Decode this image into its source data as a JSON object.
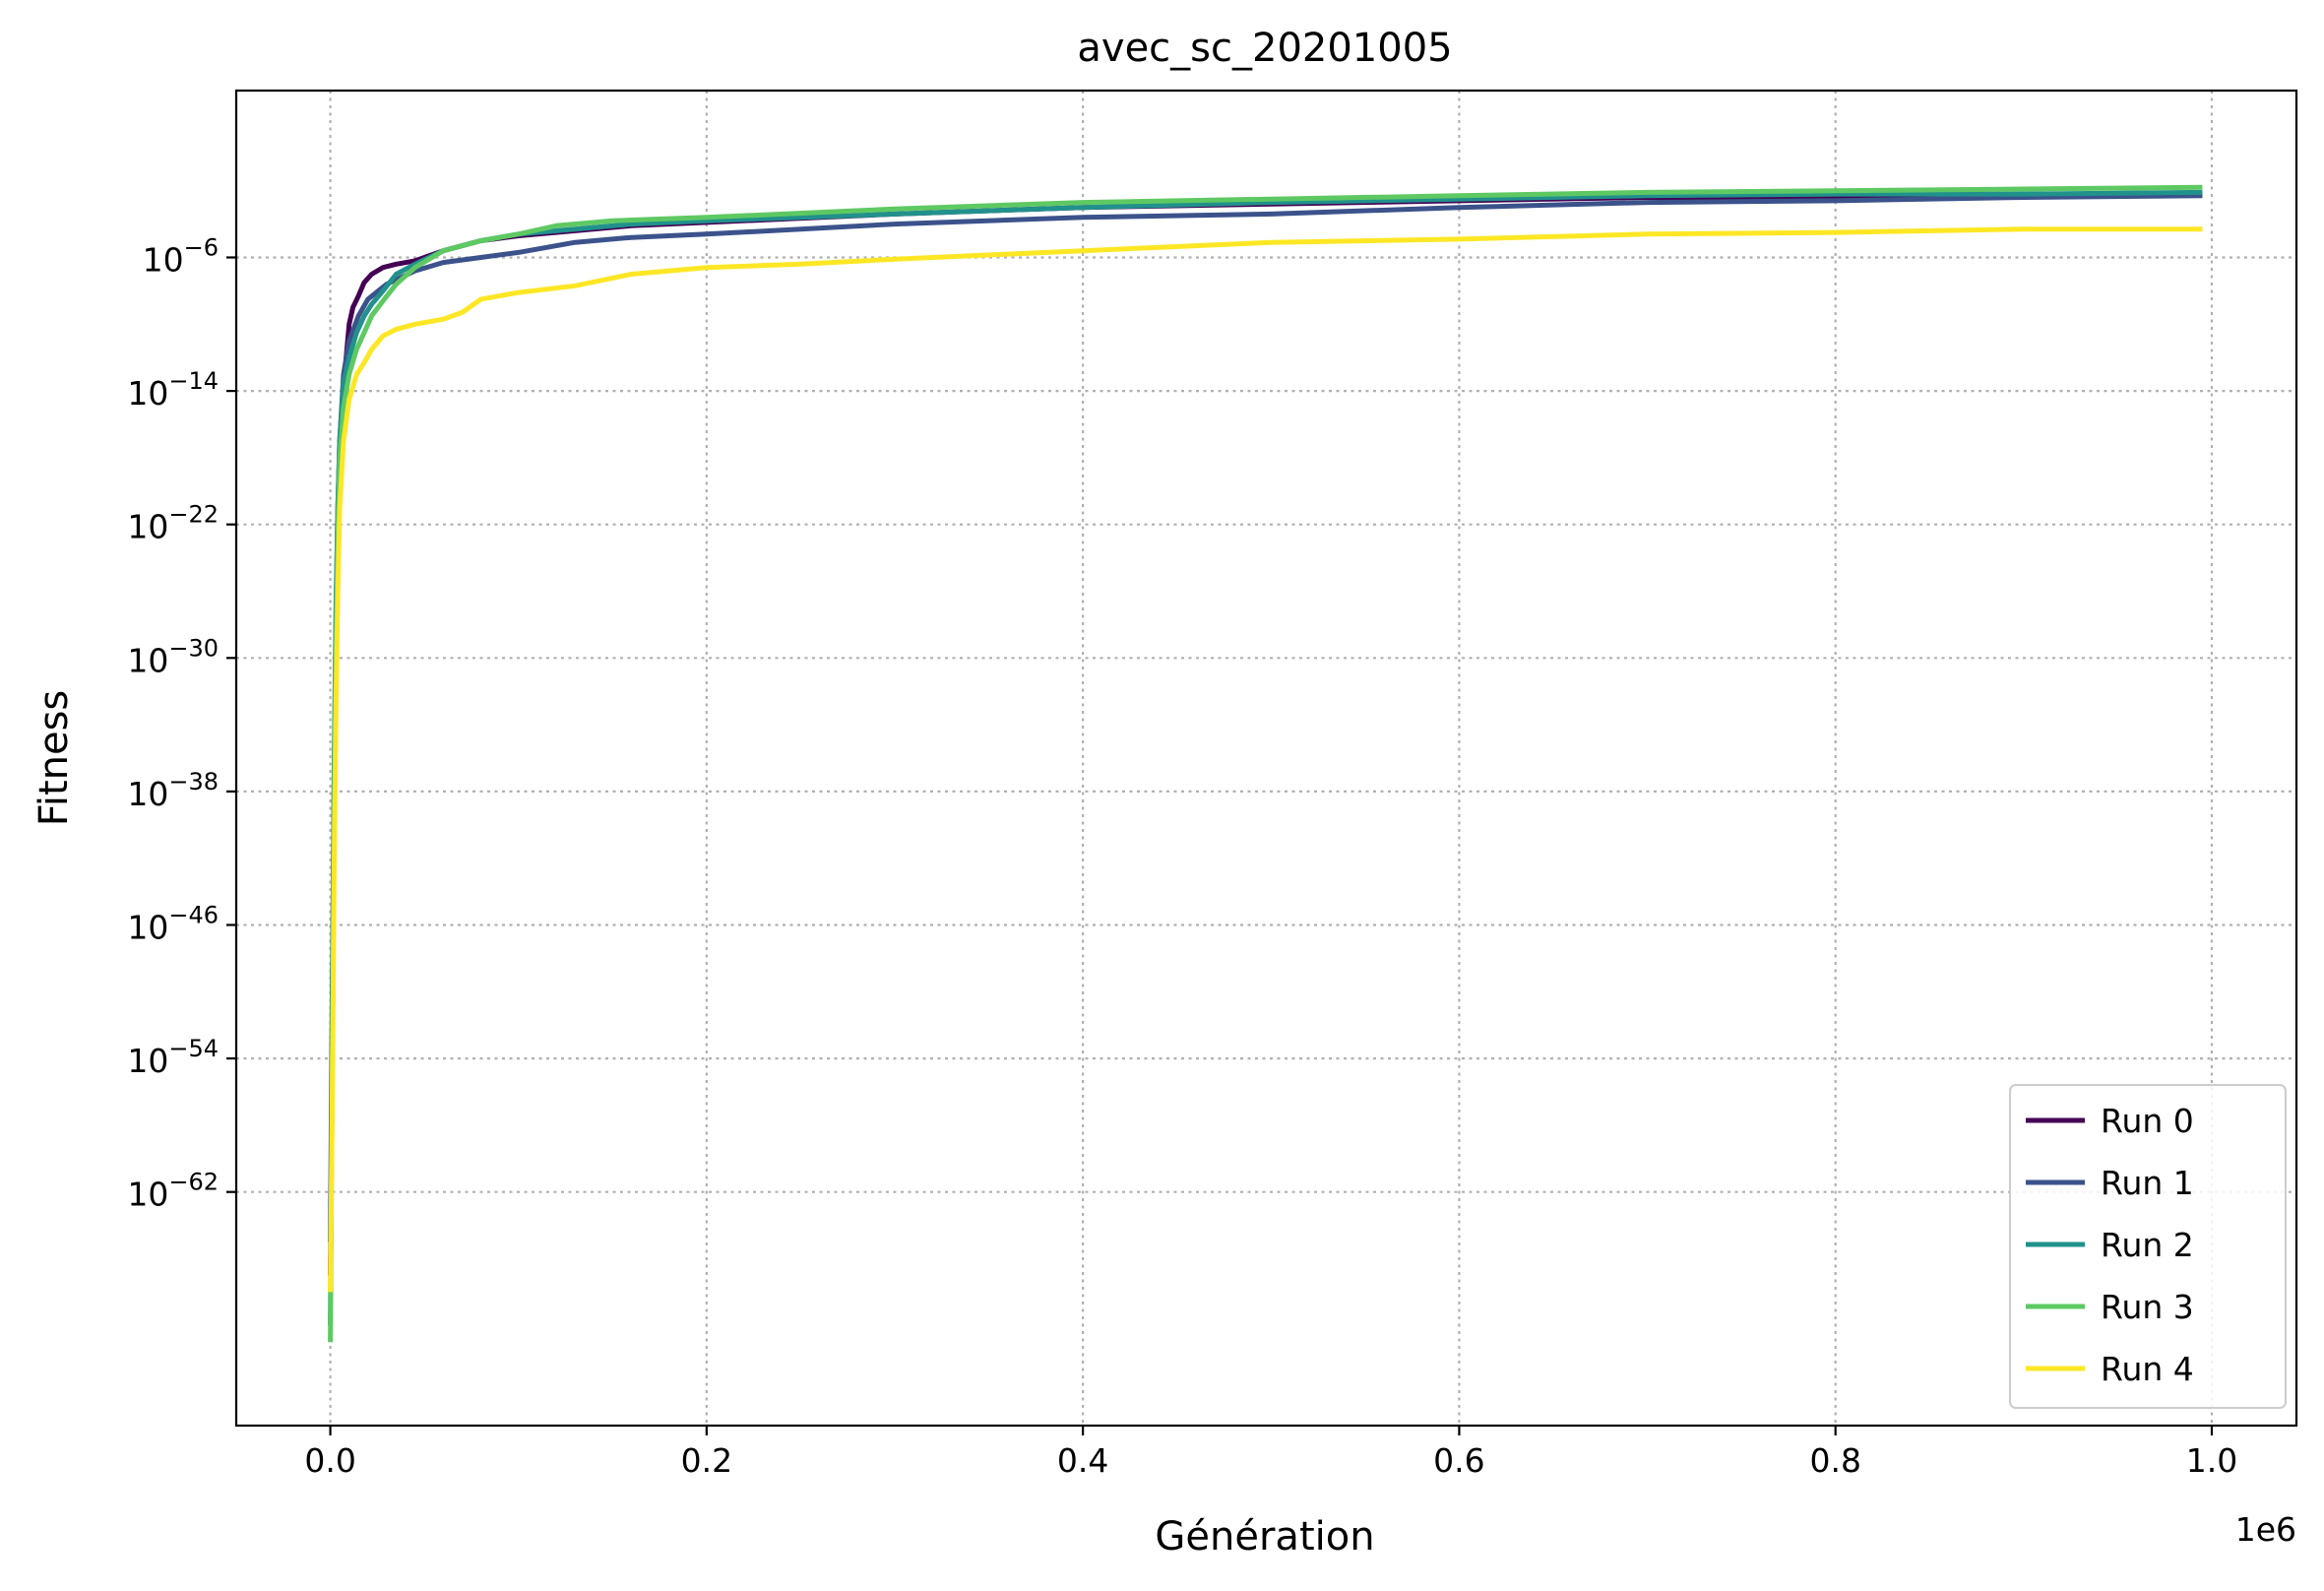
{
  "chart_data": {
    "type": "line",
    "title": "avec_sc_20201005",
    "xlabel": "Génération",
    "ylabel": "Fitness",
    "x_offset_label": "1e6",
    "xlim": [
      -50000,
      1045000
    ],
    "ylim_exponent": [
      -76,
      4
    ],
    "y_scale": "log",
    "grid": true,
    "legend_position": "lower-right",
    "x_ticks": [
      {
        "value": 0.0,
        "label": "0.0"
      },
      {
        "value": 200000,
        "label": "0.2"
      },
      {
        "value": 400000,
        "label": "0.4"
      },
      {
        "value": 600000,
        "label": "0.6"
      },
      {
        "value": 800000,
        "label": "0.8"
      },
      {
        "value": 1000000,
        "label": "1.0"
      }
    ],
    "y_ticks": [
      {
        "exp": -6,
        "base": "10",
        "power": "−6"
      },
      {
        "exp": -14,
        "base": "10",
        "power": "−14"
      },
      {
        "exp": -22,
        "base": "10",
        "power": "−22"
      },
      {
        "exp": -30,
        "base": "10",
        "power": "−30"
      },
      {
        "exp": -38,
        "base": "10",
        "power": "−38"
      },
      {
        "exp": -46,
        "base": "10",
        "power": "−46"
      },
      {
        "exp": -54,
        "base": "10",
        "power": "−54"
      },
      {
        "exp": -62,
        "base": "10",
        "power": "−62"
      }
    ],
    "series": [
      {
        "name": "Run 0",
        "color": "#440154",
        "points": [
          [
            0,
            -67
          ],
          [
            1000,
            -55
          ],
          [
            2000,
            -40
          ],
          [
            3000,
            -30
          ],
          [
            4000,
            -24
          ],
          [
            5000,
            -19
          ],
          [
            6000,
            -16
          ],
          [
            8000,
            -12.5
          ],
          [
            10000,
            -10
          ],
          [
            12000,
            -9
          ],
          [
            15000,
            -8.3
          ],
          [
            18000,
            -7.5
          ],
          [
            22000,
            -7
          ],
          [
            28000,
            -6.6
          ],
          [
            35000,
            -6.4
          ],
          [
            45000,
            -6.2
          ],
          [
            60000,
            -5.6
          ],
          [
            80000,
            -5.0
          ],
          [
            100000,
            -4.7
          ],
          [
            130000,
            -4.4
          ],
          [
            160000,
            -4.1
          ],
          [
            200000,
            -3.9
          ],
          [
            300000,
            -3.4
          ],
          [
            400000,
            -3.0
          ],
          [
            500000,
            -2.8
          ],
          [
            600000,
            -2.6
          ],
          [
            700000,
            -2.4
          ],
          [
            800000,
            -2.4
          ],
          [
            900000,
            -2.3
          ],
          [
            995000,
            -2.2
          ]
        ]
      },
      {
        "name": "Run 1",
        "color": "#3b528b",
        "points": [
          [
            0,
            -65
          ],
          [
            1000,
            -50
          ],
          [
            2000,
            -38
          ],
          [
            3000,
            -28
          ],
          [
            4000,
            -21
          ],
          [
            5000,
            -17
          ],
          [
            7000,
            -13
          ],
          [
            10000,
            -11
          ],
          [
            15000,
            -9.5
          ],
          [
            20000,
            -8.5
          ],
          [
            30000,
            -7.6
          ],
          [
            45000,
            -6.8
          ],
          [
            60000,
            -6.3
          ],
          [
            80000,
            -6.0
          ],
          [
            100000,
            -5.7
          ],
          [
            130000,
            -5.1
          ],
          [
            160000,
            -4.8
          ],
          [
            200000,
            -4.6
          ],
          [
            250000,
            -4.3
          ],
          [
            300000,
            -4.0
          ],
          [
            400000,
            -3.6
          ],
          [
            500000,
            -3.4
          ],
          [
            600000,
            -3.0
          ],
          [
            700000,
            -2.7
          ],
          [
            800000,
            -2.6
          ],
          [
            900000,
            -2.4
          ],
          [
            995000,
            -2.3
          ]
        ]
      },
      {
        "name": "Run 2",
        "color": "#21918c",
        "points": [
          [
            0,
            -70
          ],
          [
            1000,
            -52
          ],
          [
            2000,
            -37
          ],
          [
            3000,
            -27
          ],
          [
            4000,
            -21
          ],
          [
            5000,
            -17
          ],
          [
            7000,
            -13.5
          ],
          [
            10000,
            -12
          ],
          [
            14000,
            -10.5
          ],
          [
            18000,
            -9.5
          ],
          [
            22000,
            -8.8
          ],
          [
            28000,
            -8.0
          ],
          [
            35000,
            -7.0
          ],
          [
            45000,
            -6.4
          ],
          [
            60000,
            -5.6
          ],
          [
            80000,
            -5.0
          ],
          [
            100000,
            -4.6
          ],
          [
            130000,
            -4.3
          ],
          [
            160000,
            -4.0
          ],
          [
            200000,
            -3.8
          ],
          [
            300000,
            -3.4
          ],
          [
            400000,
            -3.0
          ],
          [
            500000,
            -2.7
          ],
          [
            600000,
            -2.5
          ],
          [
            700000,
            -2.3
          ],
          [
            800000,
            -2.2
          ],
          [
            900000,
            -2.2
          ],
          [
            995000,
            -2.1
          ]
        ]
      },
      {
        "name": "Run 3",
        "color": "#5ec962",
        "points": [
          [
            0,
            -71
          ],
          [
            1000,
            -55
          ],
          [
            2000,
            -40
          ],
          [
            3000,
            -30
          ],
          [
            4000,
            -23
          ],
          [
            5000,
            -18
          ],
          [
            7000,
            -15
          ],
          [
            10000,
            -13
          ],
          [
            14000,
            -11.5
          ],
          [
            18000,
            -10.5
          ],
          [
            22000,
            -9.5
          ],
          [
            28000,
            -8.6
          ],
          [
            35000,
            -7.6
          ],
          [
            45000,
            -6.6
          ],
          [
            60000,
            -5.6
          ],
          [
            80000,
            -5.0
          ],
          [
            100000,
            -4.6
          ],
          [
            120000,
            -4.1
          ],
          [
            150000,
            -3.8
          ],
          [
            200000,
            -3.6
          ],
          [
            300000,
            -3.1
          ],
          [
            400000,
            -2.7
          ],
          [
            500000,
            -2.5
          ],
          [
            600000,
            -2.3
          ],
          [
            700000,
            -2.1
          ],
          [
            800000,
            -2.0
          ],
          [
            900000,
            -1.9
          ],
          [
            995000,
            -1.8
          ]
        ]
      },
      {
        "name": "Run 4",
        "color": "#fde725",
        "points": [
          [
            0,
            -68
          ],
          [
            1000,
            -57
          ],
          [
            2000,
            -43
          ],
          [
            3000,
            -33
          ],
          [
            4000,
            -26
          ],
          [
            5000,
            -21
          ],
          [
            7000,
            -17
          ],
          [
            10000,
            -14.5
          ],
          [
            14000,
            -13
          ],
          [
            18000,
            -12.3
          ],
          [
            22000,
            -11.5
          ],
          [
            28000,
            -10.7
          ],
          [
            35000,
            -10.3
          ],
          [
            45000,
            -10.0
          ],
          [
            60000,
            -9.7
          ],
          [
            70000,
            -9.3
          ],
          [
            80000,
            -8.5
          ],
          [
            100000,
            -8.1
          ],
          [
            130000,
            -7.7
          ],
          [
            160000,
            -7.0
          ],
          [
            200000,
            -6.6
          ],
          [
            250000,
            -6.4
          ],
          [
            300000,
            -6.1
          ],
          [
            400000,
            -5.6
          ],
          [
            500000,
            -5.1
          ],
          [
            600000,
            -4.9
          ],
          [
            700000,
            -4.6
          ],
          [
            800000,
            -4.5
          ],
          [
            900000,
            -4.3
          ],
          [
            995000,
            -4.3
          ]
        ]
      }
    ]
  }
}
